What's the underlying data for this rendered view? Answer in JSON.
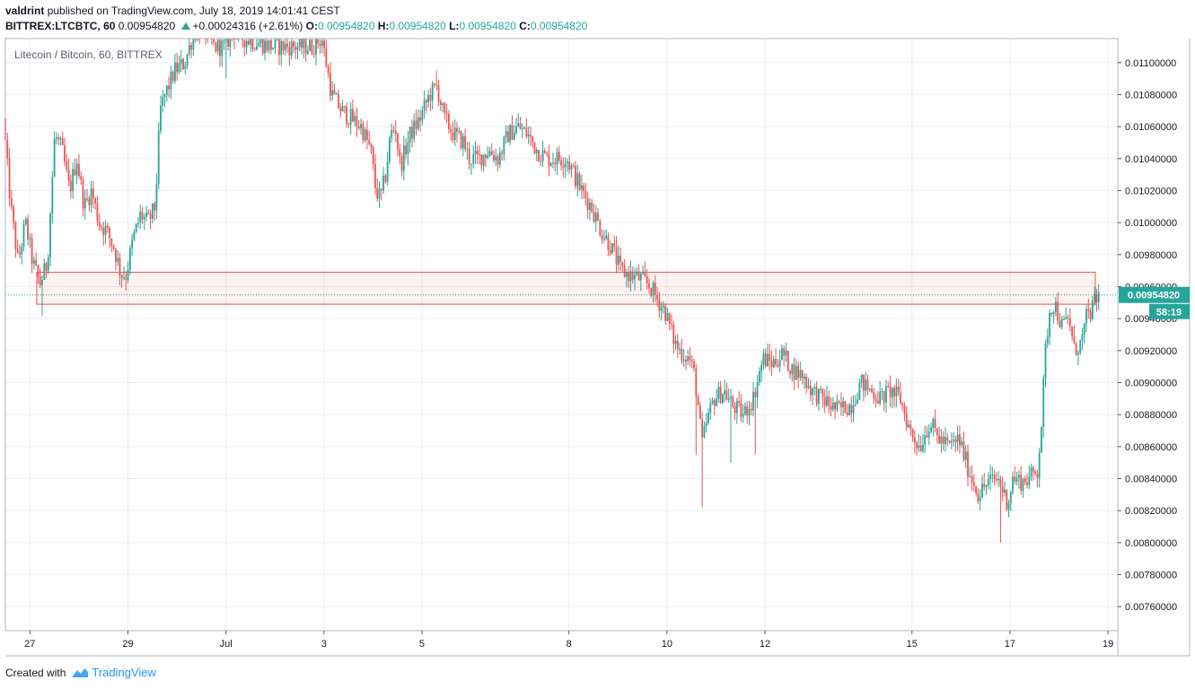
{
  "header": {
    "author": "valdrint",
    "published_text": "published on TradingView.com, July 18, 2019 14:01:41 CEST",
    "symbol": "BITTREX:LTCBTC, 60",
    "last": "0.00954820",
    "change": "+0.00024316 (+2.61%)",
    "o_label": "O:",
    "o": "0.00954820",
    "h_label": "H:",
    "h": "0.00954820",
    "l_label": "L:",
    "l": "0.00954820",
    "c_label": "C:",
    "c": "0.00954820"
  },
  "footer": {
    "created_with": "Created with",
    "brand": "TradingView"
  },
  "chart_data": {
    "type": "candlestick",
    "title": "Litecoin / Bitcoin, 60, BITTREX",
    "ylim": [
      0.00745,
      0.01115
    ],
    "xlim": [
      -1.5,
      21.2
    ],
    "y_ticks": [
      "0.01100000",
      "0.01080000",
      "0.01060000",
      "0.01040000",
      "0.01020000",
      "0.01000000",
      "0.00980000",
      "0.00960000",
      "0.00940000",
      "0.00920000",
      "0.00900000",
      "0.00880000",
      "0.00860000",
      "0.00840000",
      "0.00820000",
      "0.00800000",
      "0.00780000",
      "0.00760000"
    ],
    "x_ticks": [
      {
        "label": "27",
        "pos": -1
      },
      {
        "label": "29",
        "pos": 1
      },
      {
        "label": "Jul",
        "pos": 3
      },
      {
        "label": "3",
        "pos": 5
      },
      {
        "label": "5",
        "pos": 7
      },
      {
        "label": "8",
        "pos": 10
      },
      {
        "label": "10",
        "pos": 12
      },
      {
        "label": "12",
        "pos": 14
      },
      {
        "label": "15",
        "pos": 17
      },
      {
        "label": "17",
        "pos": 19
      },
      {
        "label": "19",
        "pos": 21
      }
    ],
    "grid": true,
    "last_price": 0.0095482,
    "last_price_label": "0.00954820",
    "countdown": "58:19",
    "support_zone": {
      "from": 0.00949,
      "to": 0.00969,
      "x_start": -0.86,
      "x_end": 21.9
    },
    "anchors": [
      [
        -1.5,
        0.01065
      ],
      [
        -1.35,
        0.0101
      ],
      [
        -1.2,
        0.00975
      ],
      [
        -1.05,
        0.01
      ],
      [
        -0.9,
        0.00975
      ],
      [
        -0.75,
        0.00962
      ],
      [
        -0.6,
        0.00975
      ],
      [
        -0.45,
        0.01055
      ],
      [
        -0.3,
        0.01045
      ],
      [
        -0.15,
        0.0102
      ],
      [
        0.0,
        0.0104
      ],
      [
        0.15,
        0.0101
      ],
      [
        0.3,
        0.0102
      ],
      [
        0.45,
        0.01
      ],
      [
        0.6,
        0.00995
      ],
      [
        0.75,
        0.00985
      ],
      [
        0.9,
        0.00968
      ],
      [
        1.0,
        0.00967
      ],
      [
        1.15,
        0.0099
      ],
      [
        1.3,
        0.01005
      ],
      [
        1.45,
        0.01
      ],
      [
        1.6,
        0.0101
      ],
      [
        1.7,
        0.0107
      ],
      [
        1.8,
        0.0108
      ],
      [
        2.0,
        0.01095
      ],
      [
        2.2,
        0.011
      ],
      [
        2.4,
        0.0112
      ],
      [
        2.6,
        0.0112
      ],
      [
        2.8,
        0.0111
      ],
      [
        3.0,
        0.0111
      ],
      [
        3.2,
        0.0112
      ],
      [
        3.4,
        0.01115
      ],
      [
        4.0,
        0.0111
      ],
      [
        4.6,
        0.0111
      ],
      [
        4.8,
        0.0111
      ],
      [
        5.0,
        0.01115
      ],
      [
        5.2,
        0.0108
      ],
      [
        5.4,
        0.0107
      ],
      [
        5.6,
        0.01065
      ],
      [
        5.8,
        0.0106
      ],
      [
        6.0,
        0.01045
      ],
      [
        6.1,
        0.0102
      ],
      [
        6.2,
        0.01015
      ],
      [
        6.3,
        0.0103
      ],
      [
        6.4,
        0.01055
      ],
      [
        6.5,
        0.0106
      ],
      [
        6.6,
        0.01035
      ],
      [
        6.8,
        0.01055
      ],
      [
        7.0,
        0.01065
      ],
      [
        7.2,
        0.0108
      ],
      [
        7.35,
        0.01085
      ],
      [
        7.5,
        0.01065
      ],
      [
        7.7,
        0.01055
      ],
      [
        7.9,
        0.0105
      ],
      [
        8.0,
        0.0104
      ],
      [
        8.2,
        0.0104
      ],
      [
        8.4,
        0.01045
      ],
      [
        8.6,
        0.0104
      ],
      [
        8.8,
        0.01055
      ],
      [
        9.0,
        0.0106
      ],
      [
        9.2,
        0.01055
      ],
      [
        9.4,
        0.01045
      ],
      [
        9.6,
        0.0104
      ],
      [
        9.8,
        0.0104
      ],
      [
        10.0,
        0.0104
      ],
      [
        10.15,
        0.0103
      ],
      [
        10.3,
        0.0102
      ],
      [
        10.5,
        0.0101
      ],
      [
        10.7,
        0.00995
      ],
      [
        10.9,
        0.00985
      ],
      [
        11.1,
        0.0097
      ],
      [
        11.3,
        0.00967
      ],
      [
        11.5,
        0.00965
      ],
      [
        11.7,
        0.0096
      ],
      [
        11.85,
        0.00952
      ],
      [
        12.0,
        0.00945
      ],
      [
        12.1,
        0.00935
      ],
      [
        12.2,
        0.00925
      ],
      [
        12.3,
        0.0092
      ],
      [
        12.5,
        0.00915
      ],
      [
        12.6,
        0.00905
      ],
      [
        12.7,
        0.0088
      ],
      [
        12.75,
        0.0086
      ],
      [
        12.85,
        0.00875
      ],
      [
        13.0,
        0.0089
      ],
      [
        13.2,
        0.00895
      ],
      [
        13.4,
        0.00885
      ],
      [
        13.6,
        0.0088
      ],
      [
        13.8,
        0.0089
      ],
      [
        14.0,
        0.00915
      ],
      [
        14.2,
        0.00912
      ],
      [
        14.4,
        0.00918
      ],
      [
        14.6,
        0.00908
      ],
      [
        14.8,
        0.00905
      ],
      [
        15.0,
        0.00895
      ],
      [
        15.2,
        0.0089
      ],
      [
        15.5,
        0.00883
      ],
      [
        15.8,
        0.00886
      ],
      [
        16.0,
        0.009
      ],
      [
        16.2,
        0.00895
      ],
      [
        16.4,
        0.0089
      ],
      [
        16.6,
        0.00895
      ],
      [
        16.8,
        0.0089
      ],
      [
        17.0,
        0.0087
      ],
      [
        17.2,
        0.0086
      ],
      [
        17.4,
        0.00875
      ],
      [
        17.6,
        0.00865
      ],
      [
        17.8,
        0.0086
      ],
      [
        18.0,
        0.00865
      ],
      [
        18.2,
        0.00845
      ],
      [
        18.4,
        0.0083
      ],
      [
        18.6,
        0.00838
      ],
      [
        18.8,
        0.0084
      ],
      [
        18.9,
        0.00832
      ],
      [
        19.0,
        0.00825
      ],
      [
        19.1,
        0.0084
      ],
      [
        19.3,
        0.00838
      ],
      [
        19.5,
        0.00842
      ],
      [
        19.6,
        0.00845
      ],
      [
        19.7,
        0.0088
      ],
      [
        19.75,
        0.00915
      ],
      [
        19.85,
        0.00945
      ],
      [
        19.95,
        0.0095
      ],
      [
        20.1,
        0.00935
      ],
      [
        20.25,
        0.0094
      ],
      [
        20.35,
        0.0092
      ],
      [
        20.5,
        0.00925
      ],
      [
        20.6,
        0.0094
      ],
      [
        20.7,
        0.00945
      ],
      [
        20.85,
        0.00955
      ]
    ],
    "spikes": [
      {
        "x": -0.75,
        "low": 0.00942
      },
      {
        "x": 12.7,
        "low": 0.00822
      },
      {
        "x": 13.3,
        "low": 0.0085
      },
      {
        "x": 13.8,
        "low": 0.00855
      },
      {
        "x": 18.8,
        "low": 0.008
      },
      {
        "x": 3.0,
        "low": 0.0109
      },
      {
        "x": 7.3,
        "high": 0.01095
      },
      {
        "x": 12.6,
        "low": 0.00855
      }
    ]
  },
  "colors": {
    "up": "#26a69a",
    "down": "#ef5350",
    "grid": "#e9eef3",
    "axis_text": "#131722",
    "zone_fill": "rgba(239,83,80,0.08)",
    "zone_border": "#ef5350",
    "price_tag": "#26a69a"
  }
}
